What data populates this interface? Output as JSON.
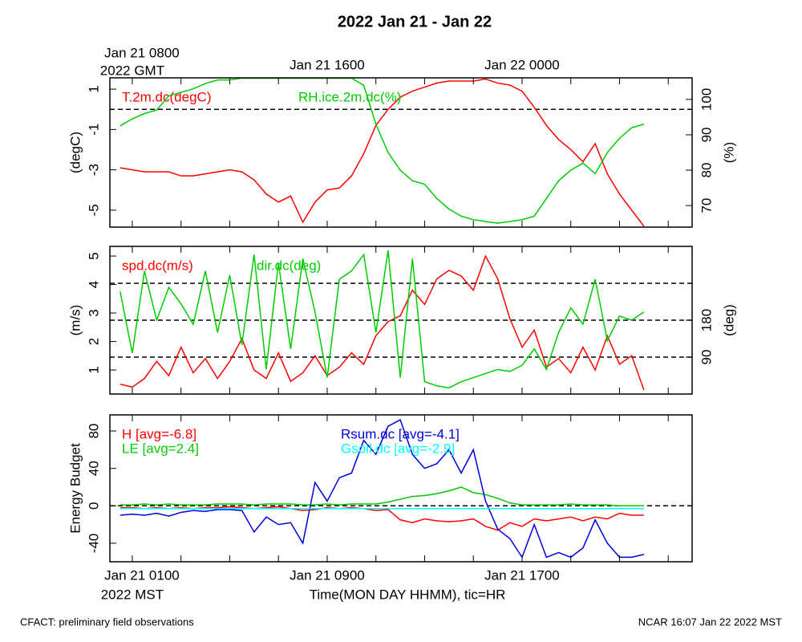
{
  "chart_data": [
    {
      "type": "line",
      "title": "2022 Jan 21 - Jan 22",
      "x": [
        0.5,
        1,
        1.5,
        2,
        2.5,
        3,
        3.5,
        4,
        4.5,
        5,
        5.5,
        6,
        6.5,
        7,
        7.5,
        8,
        8.5,
        9,
        9.5,
        10,
        10.5,
        11,
        11.5,
        12,
        12.5,
        13,
        13.5,
        14,
        14.5,
        15,
        15.5,
        16,
        16.5,
        17,
        17.5,
        18,
        18.5,
        19,
        19.5,
        20,
        20.5,
        21,
        21.5,
        22
      ],
      "xlim": [
        0.08,
        23.98
      ],
      "x2ticks": [
        {
          "value": 1,
          "label": "Jan 21 0800"
        },
        {
          "value": 9,
          "label": "Jan 21 1600"
        },
        {
          "value": 17,
          "label": "Jan 22 0000"
        }
      ],
      "x2_sublabel": "2022 GMT",
      "ylabel": "(degC)",
      "ylim": [
        -5.84,
        1.56
      ],
      "yticks": [
        1,
        -1,
        -3,
        -5
      ],
      "y2label": "(%)",
      "y2lim": [
        63.9,
        106.1
      ],
      "y2ticks": [
        100,
        90,
        80,
        70
      ],
      "hlines": [
        0
      ],
      "series": [
        {
          "name": "T.2m.dc(degC)",
          "color": "#ff0000",
          "values": [
            -2.9,
            -3.0,
            -3.1,
            -3.1,
            -3.1,
            -3.3,
            -3.3,
            -3.2,
            -3.1,
            -3.0,
            -3.1,
            -3.5,
            -4.2,
            -4.6,
            -4.3,
            -5.6,
            -4.6,
            -4.0,
            -3.9,
            -3.3,
            -2.2,
            -0.8,
            0.0,
            0.6,
            0.9,
            1.1,
            1.3,
            1.4,
            1.4,
            1.4,
            1.5,
            1.3,
            1.2,
            0.9,
            0.1,
            -0.8,
            -1.5,
            -2.0,
            -2.6,
            -1.7,
            -3.2,
            -4.2,
            -5.0,
            -5.8
          ]
        },
        {
          "name": "RH.ice.2m.dc(%)",
          "color": "#00cc00",
          "axis": "y2",
          "values": [
            92.5,
            94.5,
            96,
            97,
            101,
            102,
            103,
            104.5,
            105.5,
            105.5,
            106,
            106,
            106,
            106,
            106,
            106,
            106,
            106,
            106,
            106,
            104,
            93,
            85,
            80,
            77,
            76,
            72,
            69,
            67,
            66,
            65.5,
            65,
            65.5,
            66,
            67,
            72,
            77,
            80,
            82,
            79,
            85,
            89,
            92,
            93
          ]
        }
      ]
    },
    {
      "type": "line",
      "x": [
        0.5,
        1,
        1.5,
        2,
        2.5,
        3,
        3.5,
        4,
        4.5,
        5,
        5.5,
        6,
        6.5,
        7,
        7.5,
        8,
        8.5,
        9,
        9.5,
        10,
        10.5,
        11,
        11.5,
        12,
        12.5,
        13,
        13.5,
        14,
        14.5,
        15,
        15.5,
        16,
        16.5,
        17,
        17.5,
        18,
        18.5,
        19,
        19.5,
        20,
        20.5,
        21,
        21.5,
        22
      ],
      "xlim": [
        0.08,
        23.98
      ],
      "ylabel": "(m/s)",
      "ylim": [
        0.155,
        5.34
      ],
      "yticks": [
        1,
        2,
        3,
        4,
        5
      ],
      "y2label": "(deg)",
      "y2lim": [
        0,
        360
      ],
      "y2ticks": [
        90,
        180
      ],
      "y2hlines": [
        90,
        180,
        270
      ],
      "series": [
        {
          "name": "spd.dc(m/s)",
          "color": "#ff0000",
          "values": [
            0.5,
            0.4,
            0.7,
            1.3,
            0.8,
            1.8,
            0.9,
            1.4,
            0.7,
            1.3,
            2.1,
            1.0,
            0.7,
            1.6,
            0.6,
            0.9,
            1.5,
            0.8,
            1.1,
            1.6,
            1.2,
            2.2,
            2.7,
            2.9,
            3.8,
            3.3,
            4.2,
            4.5,
            4.3,
            3.8,
            5.0,
            4.2,
            2.8,
            1.8,
            2.4,
            1.1,
            1.4,
            0.9,
            1.8,
            1.0,
            2.2,
            1.2,
            1.5,
            0.3
          ]
        },
        {
          "name": "dir.dc(deg)",
          "color": "#00cc00",
          "axis": "y2",
          "values": [
            250,
            100,
            300,
            180,
            260,
            220,
            170,
            300,
            150,
            290,
            120,
            340,
            60,
            320,
            110,
            330,
            200,
            40,
            280,
            300,
            340,
            150,
            350,
            40,
            330,
            30,
            20,
            15,
            30,
            40,
            50,
            60,
            55,
            70,
            110,
            60,
            150,
            210,
            170,
            280,
            130,
            190,
            180,
            200
          ]
        }
      ]
    },
    {
      "type": "line",
      "x": [
        0.5,
        1,
        1.5,
        2,
        2.5,
        3,
        3.5,
        4,
        4.5,
        5,
        5.5,
        6,
        6.5,
        7,
        7.5,
        8,
        8.5,
        9,
        9.5,
        10,
        10.5,
        11,
        11.5,
        12,
        12.5,
        13,
        13.5,
        14,
        14.5,
        15,
        15.5,
        16,
        16.5,
        17,
        17.5,
        18,
        18.5,
        19,
        19.5,
        20,
        20.5,
        21,
        21.5,
        22
      ],
      "xlim": [
        0.08,
        23.98
      ],
      "xticks": [
        {
          "value": 1,
          "label": "Jan 21 0100"
        },
        {
          "value": 9,
          "label": "Jan 21 0900"
        },
        {
          "value": 17,
          "label": "Jan 21 1700"
        }
      ],
      "xminorticks": [
        3,
        5,
        7,
        11,
        13,
        15,
        19,
        21,
        23
      ],
      "x_sublabel": "2022 MST",
      "xlabel": "Time(MON DAY HHMM), tic=HR",
      "ylabel": "Energy Budget",
      "ylim": [
        -59.8,
        97.2
      ],
      "yticks": [
        80,
        40,
        0,
        -40
      ],
      "hlines": [
        0
      ],
      "series": [
        {
          "name": "H [avg=-6.8]",
          "color": "#ff0000",
          "values": [
            -2,
            -2,
            -3,
            -2,
            -3,
            -2,
            -3,
            -2,
            -2,
            -1,
            -2,
            -3,
            -2,
            -1,
            -3,
            -5,
            -4,
            -2,
            -3,
            -2,
            -3,
            -5,
            -4,
            -15,
            -18,
            -14,
            -16,
            -17,
            -16,
            -14,
            -22,
            -26,
            -18,
            -22,
            -14,
            -16,
            -14,
            -12,
            -16,
            -12,
            -14,
            -8,
            -10,
            -10
          ]
        },
        {
          "name": "LE [avg=2.4]",
          "color": "#00cc00",
          "values": [
            1,
            1,
            2,
            1,
            2,
            1,
            1,
            1,
            2,
            2,
            2,
            1,
            2,
            2,
            2,
            1,
            1,
            2,
            1,
            2,
            2,
            2,
            4,
            7,
            10,
            11,
            13,
            16,
            20,
            14,
            12,
            8,
            3,
            1,
            1,
            1,
            1,
            2,
            1,
            1,
            1,
            0,
            0,
            0
          ]
        },
        {
          "name": "Rsum.dc [avg=-4.1]",
          "color": "#0000dd",
          "values": [
            -10,
            -9,
            -10,
            -8,
            -11,
            -7,
            -5,
            -6,
            -4,
            -4,
            -5,
            -28,
            -12,
            -20,
            -18,
            -40,
            25,
            5,
            30,
            35,
            70,
            55,
            85,
            92,
            55,
            40,
            45,
            60,
            35,
            60,
            5,
            -25,
            -35,
            -55,
            -20,
            -55,
            -50,
            -55,
            -45,
            -15,
            -40,
            -55,
            -55,
            -52
          ]
        },
        {
          "name": "Gsoil.dc [avg=-2.9]",
          "color": "#00ffff",
          "values": [
            -3,
            -3,
            -3,
            -3,
            -3,
            -3,
            -3,
            -3,
            -3,
            -3,
            -3,
            -3,
            -3,
            -3,
            -3,
            -3,
            -3,
            -3,
            -3,
            -3,
            -3,
            -3,
            -3,
            -3,
            -3,
            -3,
            -3,
            -3,
            -3,
            -3,
            -3,
            -3,
            -3,
            -3,
            -3,
            -3,
            -3,
            -3,
            -3,
            -3,
            -3,
            -3,
            -3,
            -3
          ]
        }
      ]
    }
  ],
  "footer": {
    "left": "CFACT: preliminary field observations",
    "right": "NCAR 16:07 Jan 22 2022 MST"
  }
}
